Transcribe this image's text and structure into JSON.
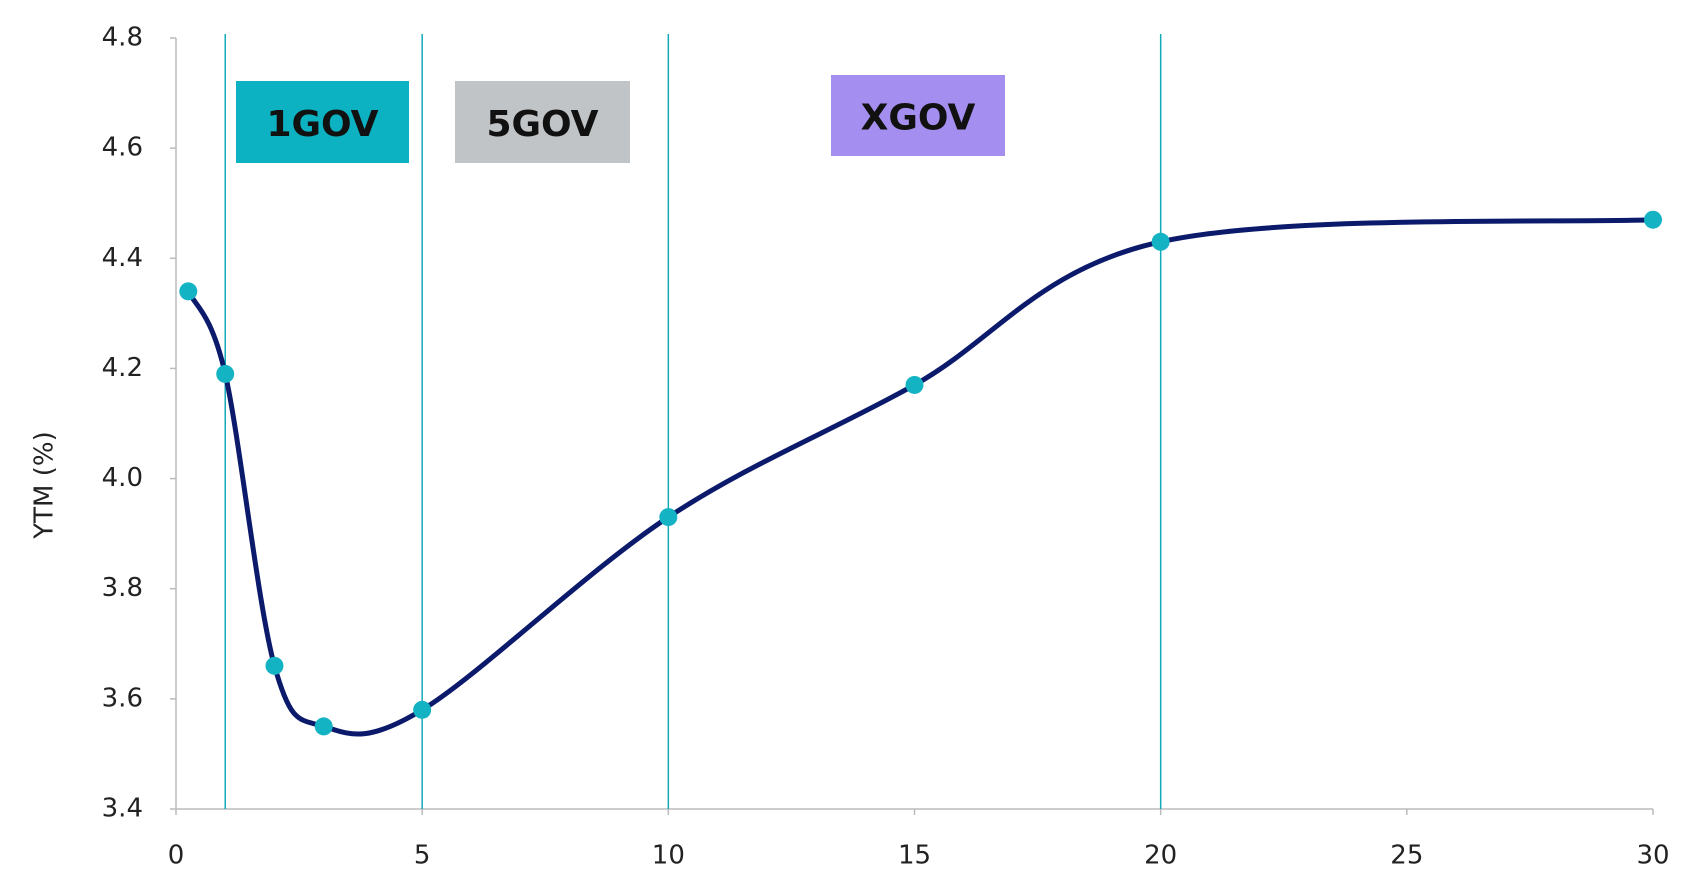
{
  "chart_data": {
    "type": "line",
    "y_label": "YTM (%)",
    "x": [
      0.25,
      1,
      2,
      3,
      5,
      10,
      15,
      20,
      30
    ],
    "series": [
      {
        "color": "#0b1a6b",
        "marker_color": "#14b3c4",
        "values": [
          4.34,
          4.19,
          3.66,
          3.55,
          3.58,
          3.93,
          4.17,
          4.43,
          4.47
        ]
      }
    ],
    "xlim": [
      0,
      30
    ],
    "xticks": [
      0,
      5,
      10,
      15,
      20,
      25,
      30
    ],
    "ylim": [
      3.4,
      4.8
    ],
    "yticks": [
      3.4,
      3.6,
      3.8,
      {
        "value": 4,
        "label": "4.0"
      },
      4.2,
      4.4,
      4.6,
      4.8
    ],
    "reference_lines": {
      "color": "#14a9b8",
      "x": [
        1,
        5,
        10,
        20
      ]
    },
    "annotations": [
      {
        "text": "1GOV",
        "color": "#0db2c2"
      },
      {
        "text": "5GOV",
        "color": "#c0c4c6"
      },
      {
        "text": "XGOV",
        "color": "#a48ff0"
      }
    ]
  }
}
